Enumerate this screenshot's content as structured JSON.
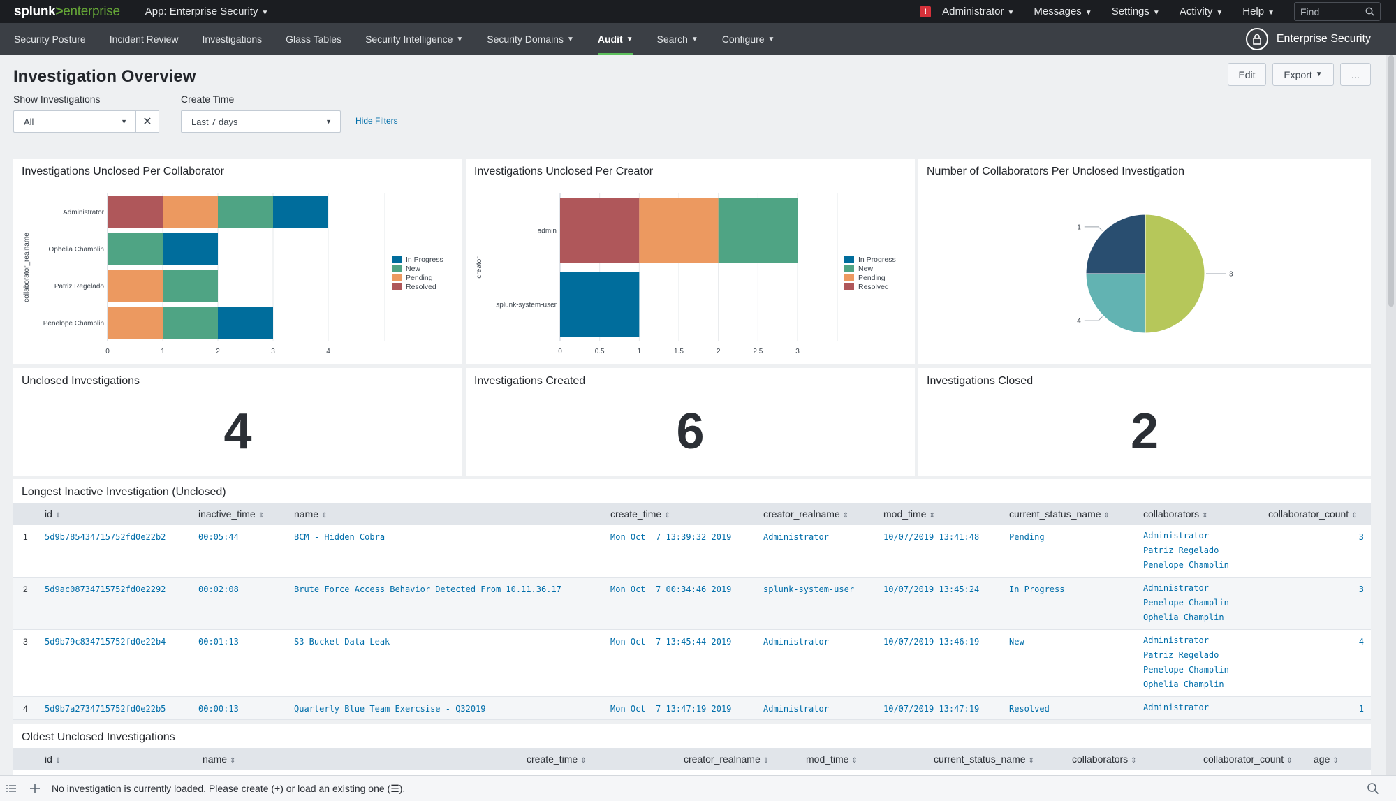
{
  "topbar": {
    "logo_main": "splunk",
    "logo_gt": ">",
    "logo_sub": "enterprise",
    "app_label": "App: Enterprise Security",
    "items": [
      "Administrator",
      "Messages",
      "Settings",
      "Activity",
      "Help"
    ],
    "find_placeholder": "Find",
    "alert_glyph": "!"
  },
  "appbar": {
    "nav": [
      "Security Posture",
      "Incident Review",
      "Investigations",
      "Glass Tables",
      "Security Intelligence",
      "Security Domains",
      "Audit",
      "Search",
      "Configure"
    ],
    "active": "Audit",
    "brand": "Enterprise Security"
  },
  "page": {
    "title": "Investigation Overview",
    "buttons": {
      "edit": "Edit",
      "export": "Export",
      "more": "..."
    },
    "filters": {
      "show_label": "Show Investigations",
      "show_value": "All",
      "time_label": "Create Time",
      "time_value": "Last 7 days",
      "hide": "Hide Filters"
    }
  },
  "panels": {
    "collab": {
      "title": "Investigations Unclosed Per Collaborator"
    },
    "creator": {
      "title": "Investigations Unclosed Per Creator"
    },
    "pie": {
      "title": "Number of Collaborators Per Unclosed Investigation"
    },
    "unclosed": {
      "title": "Unclosed Investigations",
      "value": "4"
    },
    "created": {
      "title": "Investigations Created",
      "value": "6"
    },
    "closed": {
      "title": "Investigations Closed",
      "value": "2"
    }
  },
  "chart_data": [
    {
      "type": "bar",
      "orientation": "horizontal",
      "stacked": true,
      "title": "Investigations Unclosed Per Collaborator",
      "ylabel": "collaborator_realname",
      "categories": [
        "Administrator",
        "Ophelia Champlin",
        "Patriz Regelado",
        "Penelope Champlin"
      ],
      "series": [
        {
          "name": "Resolved",
          "values": [
            1,
            0,
            0,
            0
          ]
        },
        {
          "name": "Pending",
          "values": [
            1,
            0,
            1,
            1
          ]
        },
        {
          "name": "New",
          "values": [
            1,
            1,
            1,
            1
          ]
        },
        {
          "name": "In Progress",
          "values": [
            1,
            1,
            0,
            1
          ]
        }
      ],
      "legend_order": [
        "In Progress",
        "New",
        "Pending",
        "Resolved"
      ],
      "xlim": [
        0,
        4
      ],
      "xticks": [
        "0",
        "1",
        "2",
        "3",
        "4"
      ],
      "legend": "right",
      "colors": {
        "In Progress": "#006d9c",
        "New": "#4fa484",
        "Pending": "#ec9960",
        "Resolved": "#af575a"
      }
    },
    {
      "type": "bar",
      "orientation": "horizontal",
      "stacked": true,
      "title": "Investigations Unclosed Per Creator",
      "ylabel": "creator",
      "categories": [
        "admin",
        "splunk-system-user"
      ],
      "series": [
        {
          "name": "Resolved",
          "values": [
            1,
            0
          ]
        },
        {
          "name": "Pending",
          "values": [
            1,
            0
          ]
        },
        {
          "name": "New",
          "values": [
            1,
            0
          ]
        },
        {
          "name": "In Progress",
          "values": [
            0,
            1
          ]
        }
      ],
      "legend_order": [
        "In Progress",
        "New",
        "Pending",
        "Resolved"
      ],
      "xlim": [
        0,
        3
      ],
      "xticks": [
        "0",
        "0.5",
        "1",
        "1.5",
        "2",
        "2.5",
        "3"
      ],
      "legend": "right",
      "colors": {
        "In Progress": "#006d9c",
        "New": "#4fa484",
        "Pending": "#ec9960",
        "Resolved": "#af575a"
      }
    },
    {
      "type": "pie",
      "title": "Number of Collaborators Per Unclosed Investigation",
      "slices": [
        {
          "label": "3",
          "value": 2,
          "color": "#b6c75a"
        },
        {
          "label": "4",
          "value": 1,
          "color": "#62b3b2"
        },
        {
          "label": "1",
          "value": 1,
          "color": "#294e70"
        }
      ]
    }
  ],
  "longest": {
    "title": "Longest Inactive Investigation (Unclosed)",
    "columns": [
      "id",
      "inactive_time",
      "name",
      "create_time",
      "creator_realname",
      "mod_time",
      "current_status_name",
      "collaborators",
      "collaborator_count"
    ],
    "rows": [
      {
        "idx": "1",
        "id": "5d9b785434715752fd0e22b2",
        "inactive_time": "00:05:44",
        "name": "BCM - Hidden Cobra",
        "create_time": "Mon Oct  7 13:39:32 2019",
        "creator": "Administrator",
        "mod_time": "10/07/2019 13:41:48",
        "status": "Pending",
        "collaborators": [
          "Administrator",
          "Patriz Regelado",
          "Penelope Champlin"
        ],
        "count": "3"
      },
      {
        "idx": "2",
        "id": "5d9ac08734715752fd0e2292",
        "inactive_time": "00:02:08",
        "name": "Brute Force Access Behavior Detected From 10.11.36.17",
        "create_time": "Mon Oct  7 00:34:46 2019",
        "creator": "splunk-system-user",
        "mod_time": "10/07/2019 13:45:24",
        "status": "In Progress",
        "collaborators": [
          "Administrator",
          "Penelope Champlin",
          "Ophelia Champlin"
        ],
        "count": "3"
      },
      {
        "idx": "3",
        "id": "5d9b79c834715752fd0e22b4",
        "inactive_time": "00:01:13",
        "name": "S3 Bucket Data Leak",
        "create_time": "Mon Oct  7 13:45:44 2019",
        "creator": "Administrator",
        "mod_time": "10/07/2019 13:46:19",
        "status": "New",
        "collaborators": [
          "Administrator",
          "Patriz Regelado",
          "Penelope Champlin",
          "Ophelia Champlin"
        ],
        "count": "4"
      },
      {
        "idx": "4",
        "id": "5d9b7a2734715752fd0e22b5",
        "inactive_time": "00:00:13",
        "name": "Quarterly Blue Team Exercsise - Q32019",
        "create_time": "Mon Oct  7 13:47:19 2019",
        "creator": "Administrator",
        "mod_time": "10/07/2019 13:47:19",
        "status": "Resolved",
        "collaborators": [
          "Administrator"
        ],
        "count": "1"
      }
    ]
  },
  "oldest": {
    "title": "Oldest Unclosed Investigations",
    "columns": [
      "id",
      "name",
      "create_time",
      "creator_realname",
      "mod_time",
      "current_status_name",
      "collaborators",
      "collaborator_count",
      "age"
    ]
  },
  "footer": {
    "text": "No investigation is currently loaded. Please create (+) or load an existing one (☰)."
  }
}
